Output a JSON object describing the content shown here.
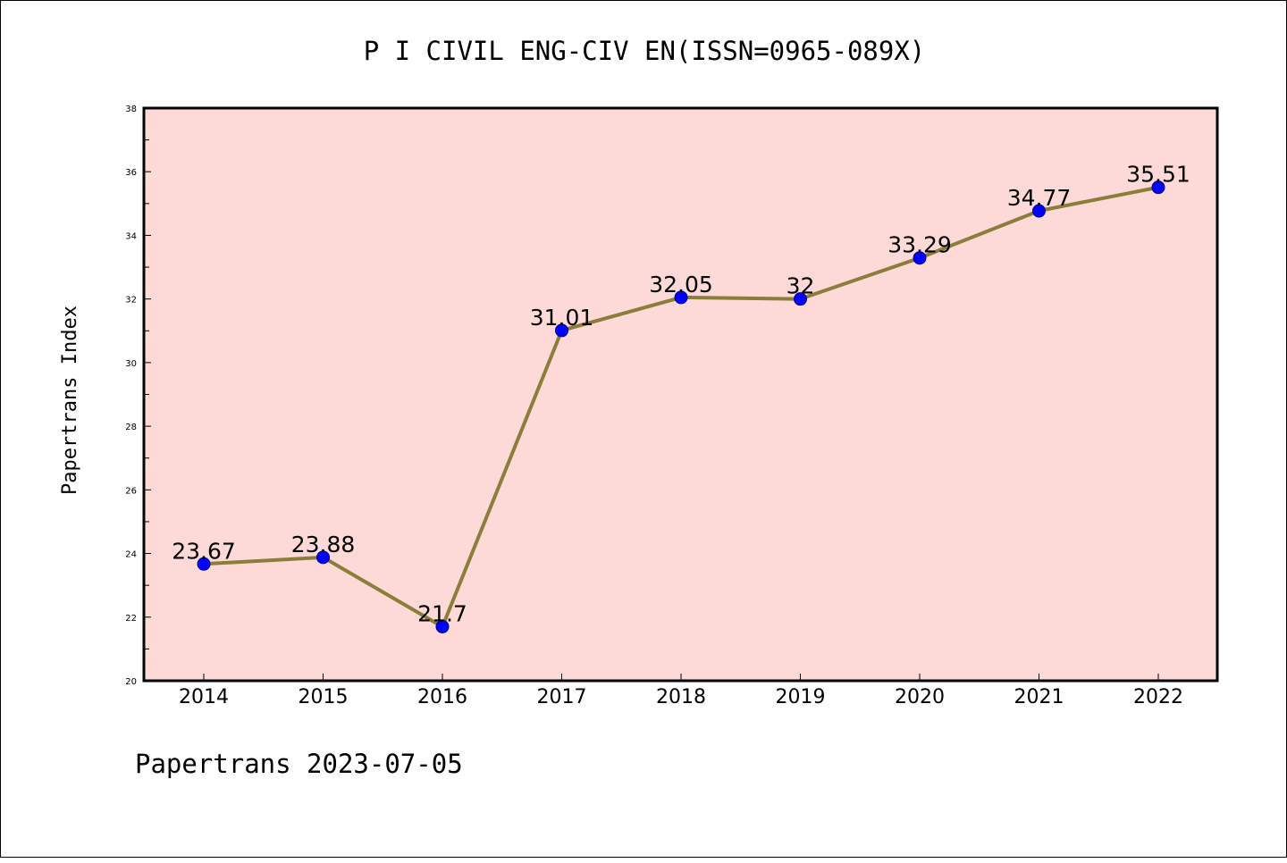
{
  "chart_data": {
    "type": "line",
    "title": "P I CIVIL ENG-CIV EN(ISSN=0965-089X)",
    "ylabel": "Papertrans Index",
    "xlabel": "",
    "footer": "Papertrans 2023-07-05",
    "categories": [
      "2014",
      "2015",
      "2016",
      "2017",
      "2018",
      "2019",
      "2020",
      "2021",
      "2022"
    ],
    "series": [
      {
        "values": [
          23.67,
          23.88,
          21.7,
          31.01,
          32.05,
          32,
          33.29,
          34.77,
          35.51
        ],
        "labels": [
          "23.67",
          "23.88",
          "21.7",
          "31.01",
          "32.05",
          "32",
          "33.29",
          "34.77",
          "35.51"
        ]
      }
    ],
    "ylim": [
      20,
      38
    ],
    "yticks": [
      20,
      22,
      24,
      26,
      28,
      30,
      32,
      34,
      36,
      38
    ],
    "grid": false,
    "colors": {
      "plot_background": "#fddad8",
      "line": "#8b7d3a",
      "marker": "#0000ff"
    }
  }
}
